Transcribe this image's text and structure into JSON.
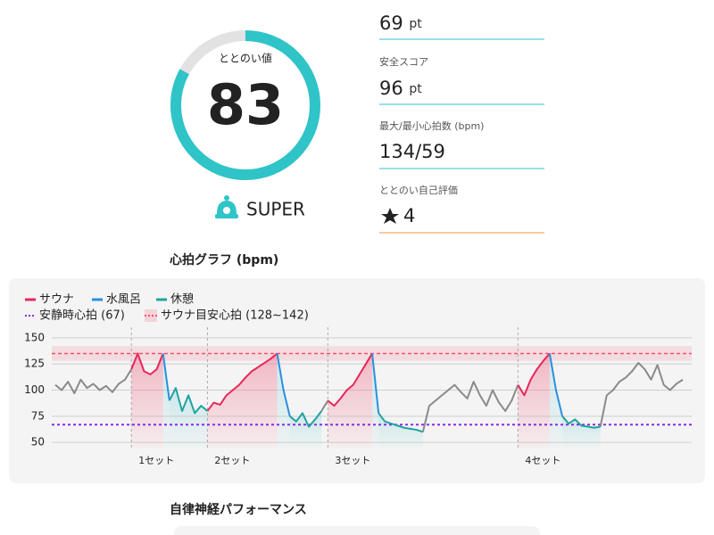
{
  "score": {
    "label": "ととのい値",
    "value": 83,
    "rank": "SUPER"
  },
  "metrics": [
    {
      "value": "69",
      "unit": "pt"
    },
    {
      "label": "安全スコア",
      "value": "96",
      "unit": "pt"
    },
    {
      "label": "最大/最小心拍数 (bpm)",
      "value": "134/59"
    },
    {
      "label": "ととのい自己評価",
      "value": "4"
    }
  ],
  "next_section": {
    "title": "自律神経パフォーマンス"
  },
  "chart_data": {
    "type": "line",
    "title": "心拍グラフ (bpm)",
    "xlim": [
      0,
      99
    ],
    "ylim": [
      45,
      155
    ],
    "yticks": [
      50,
      75,
      100,
      125,
      150
    ],
    "grid": true,
    "series": [
      {
        "color": "#8a8a8a",
        "x": [
          0,
          1,
          2,
          3,
          4,
          5,
          6,
          7,
          8,
          9,
          10,
          11,
          12,
          null,
          42,
          43,
          null,
          58,
          59,
          60,
          61,
          62,
          63,
          64,
          65,
          66,
          67,
          68,
          69,
          70,
          71,
          72,
          73,
          null,
          86,
          87,
          88,
          89,
          90,
          91,
          92,
          93,
          94,
          95,
          96,
          97,
          98,
          99
        ],
        "values": [
          105,
          100,
          108,
          97,
          110,
          102,
          106,
          100,
          104,
          98,
          106,
          110,
          120,
          null,
          80,
          90,
          null,
          60,
          85,
          90,
          95,
          100,
          105,
          98,
          92,
          108,
          95,
          85,
          100,
          88,
          80,
          90,
          105,
          null,
          65,
          95,
          100,
          108,
          112,
          118,
          126,
          120,
          110,
          124,
          105,
          100,
          106,
          110
        ]
      },
      {
        "name": "サウナ",
        "color": "#e8275a",
        "x": [
          12,
          13,
          14,
          15,
          16,
          17,
          null,
          24,
          25,
          26,
          27,
          28,
          29,
          30,
          31,
          32,
          33,
          34,
          35,
          null,
          43,
          44,
          45,
          46,
          47,
          48,
          49,
          50,
          null,
          73,
          74,
          75,
          76,
          77,
          78
        ],
        "values": [
          120,
          135,
          118,
          115,
          120,
          135,
          null,
          80,
          88,
          86,
          95,
          100,
          105,
          112,
          118,
          122,
          126,
          130,
          135,
          null,
          90,
          85,
          92,
          100,
          105,
          115,
          125,
          135,
          null,
          105,
          95,
          110,
          120,
          128,
          135
        ]
      },
      {
        "name": "水風呂",
        "color": "#2a8fe0",
        "x": [
          17,
          18,
          null,
          35,
          36,
          37,
          null,
          50,
          51,
          null,
          78,
          79,
          80
        ],
        "values": [
          135,
          90,
          null,
          135,
          100,
          75,
          null,
          135,
          78,
          null,
          135,
          100,
          75
        ]
      },
      {
        "name": "休憩",
        "color": "#1fa3a0",
        "x": [
          18,
          19,
          20,
          21,
          22,
          23,
          24,
          null,
          37,
          38,
          39,
          40,
          41,
          42,
          null,
          51,
          52,
          53,
          54,
          55,
          56,
          57,
          58,
          null,
          80,
          81,
          82,
          83,
          84,
          85,
          86
        ],
        "values": [
          90,
          102,
          80,
          95,
          78,
          85,
          80,
          null,
          75,
          70,
          78,
          65,
          72,
          80,
          null,
          78,
          70,
          68,
          66,
          64,
          63,
          62,
          60,
          null,
          75,
          68,
          72,
          66,
          65,
          64,
          65
        ]
      }
    ],
    "reference_line": {
      "name": "安静時心拍 (67)",
      "value": 67,
      "color": "#8a2be2"
    },
    "reference_band": {
      "name": "サウナ目安心拍 (128~142)",
      "range": [
        128,
        142
      ],
      "color": "#f4516c"
    },
    "sets": [
      {
        "label": "1セット",
        "x": 12
      },
      {
        "label": "2セット",
        "x": 24
      },
      {
        "label": "3セット",
        "x": 43
      },
      {
        "label": "4セット",
        "x": 73
      }
    ]
  }
}
